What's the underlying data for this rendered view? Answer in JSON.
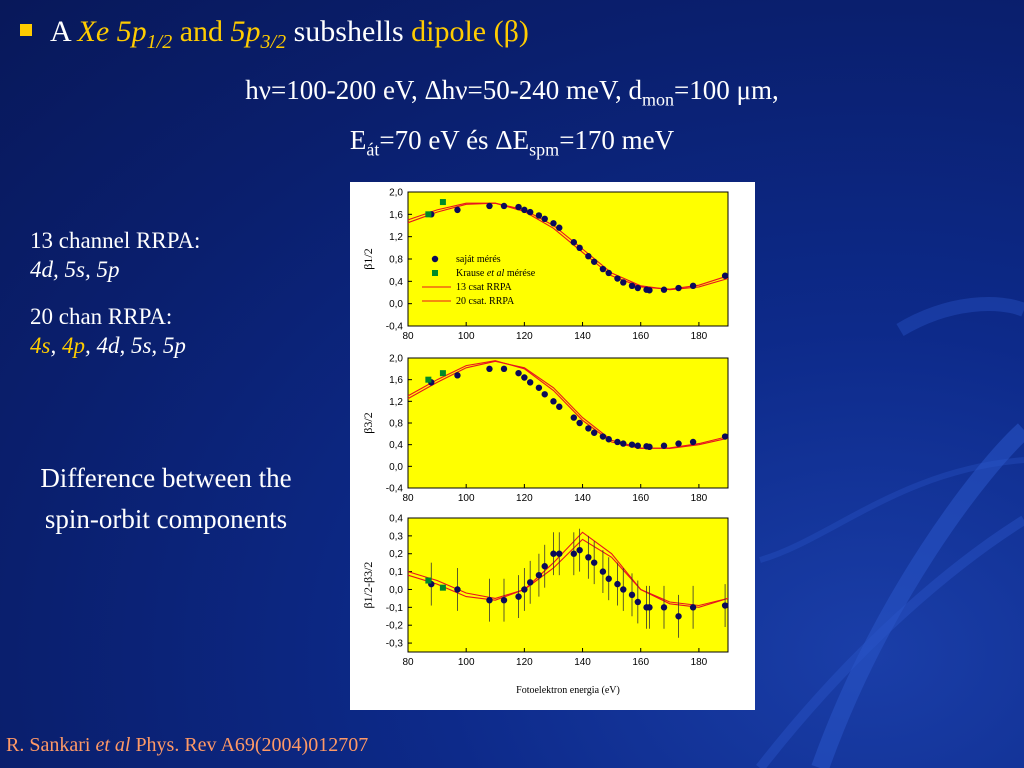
{
  "slide": {
    "title": {
      "prefix": "A",
      "element": "Xe",
      "sub1_main": "5p",
      "sub1_idx": "1/2",
      "and": "and",
      "sub2_main": "5p",
      "sub2_idx": "3/2",
      "mid": "subshells",
      "suffix": "dipole (β)"
    },
    "params_line1": {
      "a": "hν=100-200 eV, Δhν=50-240   meV, d",
      "a_sub": "mon",
      "b": "=100 μm,"
    },
    "params_line2": {
      "a": "E",
      "a_sub": "át",
      "b": "=70 eV és ΔE",
      "b_sub": "spm",
      "c": "=170 meV"
    },
    "rrpa13": {
      "label": "13 channel RRPA:",
      "orbitals": "4d, 5s, 5p"
    },
    "rrpa20": {
      "label": "20 chan RRPA:",
      "orb1": "4s",
      "orb2": "4p",
      "rest": "4d, 5s, 5p",
      "sep": ", "
    },
    "difference": {
      "line1": "Difference between the",
      "line2": "spin-orbit components"
    },
    "reference": {
      "author": "R. Sankari ",
      "etal": "et al",
      "journal": " Phys. Rev A69(2004)012707"
    },
    "colors": {
      "title_accent": "#ffcc00",
      "reference": "#ff9966",
      "plot_bg": "#ffff00",
      "curve": "#e8141e",
      "marker_measured": "#0a0a5a",
      "marker_krause": "#008a28"
    }
  },
  "figure": {
    "xlabel": "Fotoelektron energia (eV)",
    "xticks": [
      80,
      100,
      120,
      140,
      160,
      180
    ],
    "legend": {
      "measured": "saját mérés",
      "krause_a": "Krause ",
      "krause_b": "et al",
      "krause_c": " mérése",
      "rrpa13": "13 csat RRPA",
      "rrpa20": "20 csat. RRPA"
    },
    "ylabels": [
      "β1/2",
      "β3/2",
      "β1/2-β3/2"
    ]
  },
  "chart_data": [
    {
      "type": "scatter",
      "ylabel": "β1/2",
      "xlim": [
        80,
        190
      ],
      "ylim": [
        -0.4,
        2.0
      ],
      "yticks": [
        "2,0",
        "1,6",
        "1,2",
        "0,8",
        "0,4",
        "0,0",
        "-0,4"
      ],
      "series": [
        {
          "name": "saját mérés",
          "x": [
            88,
            97,
            108,
            113,
            118,
            120,
            122,
            125,
            127,
            130,
            132,
            137,
            139,
            142,
            144,
            147,
            149,
            152,
            154,
            157,
            159,
            162,
            163,
            168,
            173,
            178,
            189
          ],
          "y": [
            1.6,
            1.68,
            1.75,
            1.75,
            1.73,
            1.68,
            1.64,
            1.58,
            1.52,
            1.44,
            1.36,
            1.1,
            1.0,
            0.85,
            0.75,
            0.62,
            0.55,
            0.45,
            0.38,
            0.32,
            0.28,
            0.25,
            0.24,
            0.25,
            0.28,
            0.32,
            0.5
          ]
        },
        {
          "name": "Krause et al mérése",
          "x": [
            87,
            92
          ],
          "y": [
            1.6,
            1.82
          ]
        },
        {
          "name": "13 csat RRPA",
          "x": [
            80,
            90,
            100,
            110,
            120,
            130,
            140,
            150,
            160,
            170,
            180,
            190
          ],
          "y": [
            1.5,
            1.68,
            1.8,
            1.8,
            1.65,
            1.35,
            0.92,
            0.5,
            0.3,
            0.26,
            0.33,
            0.5
          ]
        },
        {
          "name": "20 csat. RRPA",
          "x": [
            80,
            90,
            100,
            110,
            120,
            130,
            140,
            150,
            160,
            170,
            180,
            190
          ],
          "y": [
            1.45,
            1.64,
            1.78,
            1.8,
            1.68,
            1.4,
            0.98,
            0.55,
            0.32,
            0.25,
            0.3,
            0.45
          ]
        }
      ]
    },
    {
      "type": "scatter",
      "ylabel": "β3/2",
      "xlim": [
        80,
        190
      ],
      "ylim": [
        -0.4,
        2.0
      ],
      "yticks": [
        "2,0",
        "1,6",
        "1,2",
        "0,8",
        "0,4",
        "0,0",
        "-0,4"
      ],
      "series": [
        {
          "name": "saját mérés",
          "x": [
            88,
            97,
            108,
            113,
            118,
            120,
            122,
            125,
            127,
            130,
            132,
            137,
            139,
            142,
            144,
            147,
            149,
            152,
            154,
            157,
            159,
            162,
            163,
            168,
            173,
            178,
            189
          ],
          "y": [
            1.55,
            1.68,
            1.8,
            1.8,
            1.72,
            1.64,
            1.55,
            1.45,
            1.33,
            1.2,
            1.1,
            0.9,
            0.8,
            0.7,
            0.62,
            0.55,
            0.5,
            0.45,
            0.42,
            0.4,
            0.38,
            0.37,
            0.36,
            0.38,
            0.42,
            0.45,
            0.55
          ]
        },
        {
          "name": "Krause et al mérése",
          "x": [
            87,
            92
          ],
          "y": [
            1.6,
            1.72
          ]
        },
        {
          "name": "13 csat RRPA",
          "x": [
            80,
            90,
            100,
            110,
            120,
            130,
            140,
            150,
            160,
            170,
            180,
            190
          ],
          "y": [
            1.3,
            1.6,
            1.86,
            1.95,
            1.8,
            1.4,
            0.85,
            0.45,
            0.33,
            0.34,
            0.42,
            0.55
          ]
        },
        {
          "name": "20 csat. RRPA",
          "x": [
            80,
            90,
            100,
            110,
            120,
            130,
            140,
            150,
            160,
            170,
            180,
            190
          ],
          "y": [
            1.25,
            1.55,
            1.82,
            1.94,
            1.82,
            1.45,
            0.9,
            0.48,
            0.34,
            0.33,
            0.4,
            0.52
          ]
        }
      ]
    },
    {
      "type": "scatter",
      "ylabel": "β1/2-β3/2",
      "xlim": [
        80,
        190
      ],
      "ylim": [
        -0.35,
        0.4
      ],
      "yticks": [
        "0,4",
        "0,3",
        "0,2",
        "0,1",
        "0,0",
        "-0,1",
        "-0,2",
        "-0,3"
      ],
      "series": [
        {
          "name": "saját mérés",
          "x": [
            88,
            97,
            108,
            113,
            118,
            120,
            122,
            125,
            127,
            130,
            132,
            137,
            139,
            142,
            144,
            147,
            149,
            152,
            154,
            157,
            159,
            162,
            163,
            168,
            173,
            178,
            189
          ],
          "y": [
            0.03,
            0.0,
            -0.06,
            -0.06,
            -0.04,
            0.0,
            0.04,
            0.08,
            0.13,
            0.2,
            0.2,
            0.2,
            0.22,
            0.18,
            0.15,
            0.1,
            0.06,
            0.03,
            0.0,
            -0.03,
            -0.07,
            -0.1,
            -0.1,
            -0.1,
            -0.15,
            -0.1,
            -0.09
          ],
          "yerr": 0.12
        },
        {
          "name": "Krause et al mérése",
          "x": [
            87,
            92
          ],
          "y": [
            0.05,
            0.01
          ]
        },
        {
          "name": "13 csat RRPA",
          "x": [
            80,
            90,
            100,
            110,
            120,
            130,
            140,
            150,
            160,
            170,
            180,
            190
          ],
          "y": [
            0.1,
            0.05,
            -0.02,
            -0.05,
            0.0,
            0.15,
            0.32,
            0.2,
            0.0,
            -0.08,
            -0.1,
            -0.05
          ]
        },
        {
          "name": "20 csat. RRPA",
          "x": [
            80,
            90,
            100,
            110,
            120,
            130,
            140,
            150,
            160,
            170,
            180,
            190
          ],
          "y": [
            0.08,
            0.03,
            -0.04,
            -0.06,
            0.0,
            0.12,
            0.28,
            0.18,
            0.0,
            -0.07,
            -0.09,
            -0.05
          ]
        }
      ]
    }
  ]
}
